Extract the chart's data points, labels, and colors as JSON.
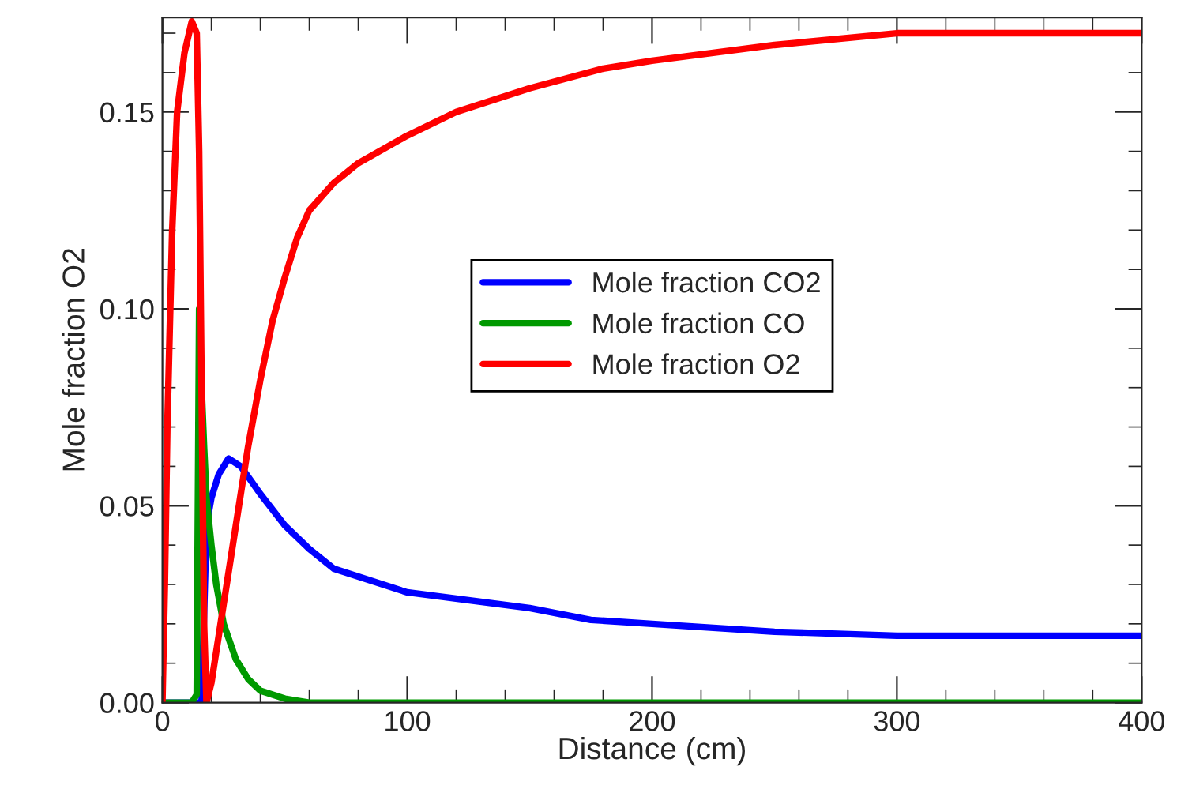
{
  "chart_data": {
    "type": "line",
    "xlabel": "Distance (cm)",
    "ylabel": "Mole fraction O2",
    "xlim": [
      0,
      400
    ],
    "xticks": [
      0,
      100,
      200,
      300,
      400
    ],
    "ylim": [
      0,
      0.174
    ],
    "yticks": [
      {
        "value": 0,
        "label": "0.00"
      },
      {
        "value": 0.05,
        "label": "0.05"
      },
      {
        "value": 0.1,
        "label": "0.10"
      },
      {
        "value": 0.15,
        "label": "0.15"
      }
    ],
    "grid": false,
    "legend": "center",
    "marker": "none",
    "line_style": "solid",
    "series": [
      {
        "name": "Mole fraction CO2",
        "color": "#0000ff",
        "x": [
          0,
          15,
          16,
          18,
          20,
          23,
          27,
          32,
          40,
          50,
          60,
          70,
          100,
          150,
          175,
          200,
          250,
          300,
          400
        ],
        "values": [
          0,
          0,
          0,
          0.045,
          0.052,
          0.058,
          0.062,
          0.06,
          0.053,
          0.045,
          0.039,
          0.034,
          0.028,
          0.024,
          0.021,
          0.02,
          0.018,
          0.017,
          0.017
        ]
      },
      {
        "name": "Mole fraction CO",
        "color": "#009900",
        "x": [
          0,
          12,
          14,
          15,
          16,
          17,
          18,
          20,
          22,
          25,
          30,
          35,
          40,
          50,
          60,
          400
        ],
        "values": [
          0,
          0,
          0.002,
          0.1,
          0.08,
          0.065,
          0.052,
          0.04,
          0.03,
          0.02,
          0.011,
          0.006,
          0.003,
          0.001,
          0,
          0
        ]
      },
      {
        "name": "Mole fraction O2",
        "color": "#ff0000",
        "x": [
          0,
          1,
          2,
          4,
          6,
          9,
          12,
          14,
          15,
          16,
          17,
          18,
          20,
          25,
          30,
          35,
          40,
          45,
          50,
          55,
          60,
          70,
          80,
          100,
          120,
          150,
          180,
          200,
          250,
          300,
          400
        ],
        "values": [
          0,
          0.03,
          0.07,
          0.12,
          0.15,
          0.165,
          0.173,
          0.17,
          0.14,
          0.08,
          0.02,
          0,
          0.005,
          0.025,
          0.045,
          0.065,
          0.082,
          0.097,
          0.108,
          0.118,
          0.125,
          0.132,
          0.137,
          0.144,
          0.15,
          0.156,
          0.161,
          0.163,
          0.167,
          0.17,
          0.17
        ]
      }
    ]
  }
}
